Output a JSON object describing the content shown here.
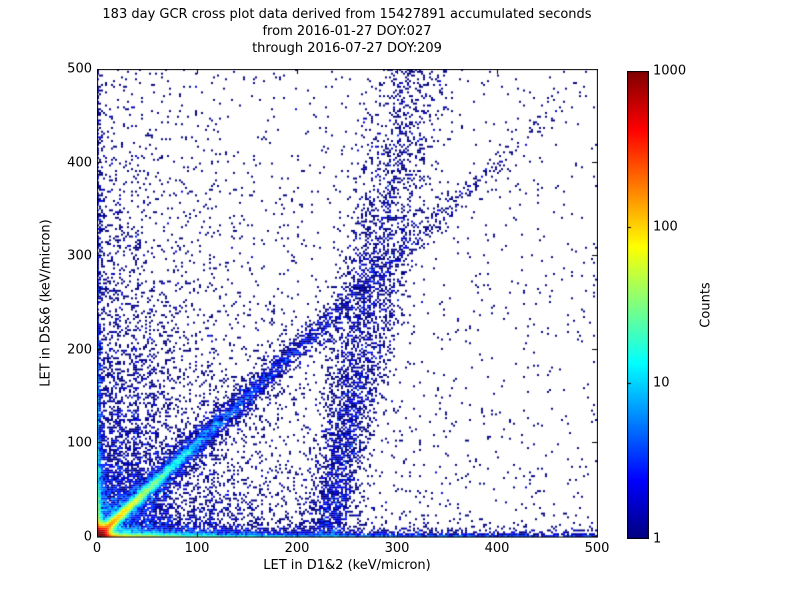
{
  "title": {
    "line1": "183 day GCR cross plot data derived from 15427891 accumulated seconds",
    "line2": "from 2016-01-27 DOY:027",
    "line3": "through 2016-07-27 DOY:209"
  },
  "axes": {
    "xlabel": "LET in D1&2 (keV/micron)",
    "ylabel": "LET in D5&6 (keV/micron)",
    "x_ticks": [
      0,
      100,
      200,
      300,
      400,
      500
    ],
    "y_ticks": [
      0,
      100,
      200,
      300,
      400,
      500
    ],
    "xlim": [
      0,
      500
    ],
    "ylim": [
      0,
      500
    ]
  },
  "colorbar": {
    "label": "Counts",
    "ticks": [
      1,
      10,
      100,
      1000
    ],
    "scale": "log",
    "vmin": 1,
    "vmax": 1000
  },
  "chart_data": {
    "type": "heatmap",
    "title": "183 day GCR cross plot data derived from 15427891 accumulated seconds",
    "subtitle_from": "from 2016-01-27 DOY:027",
    "subtitle_through": "through 2016-07-27 DOY:209",
    "duration_days": 183,
    "accumulated_seconds": 15427891,
    "xlabel": "LET in D1&2 (keV/micron)",
    "ylabel": "LET in D5&6 (keV/micron)",
    "zlabel": "Counts",
    "xlim": [
      0,
      500
    ],
    "ylim": [
      0,
      500
    ],
    "zlim": [
      1,
      1000
    ],
    "zscale": "log10",
    "grid": false,
    "colormap": "jet",
    "colormap_stops": [
      [
        0.0,
        "#00007f"
      ],
      [
        0.125,
        "#0000ff"
      ],
      [
        0.375,
        "#00ffff"
      ],
      [
        0.625,
        "#ffff00"
      ],
      [
        0.875,
        "#ff0000"
      ],
      [
        1.0,
        "#7f0000"
      ]
    ],
    "background": "#ffffff",
    "bin_size_units": 2,
    "seed": 123457,
    "structure_notes": [
      "Hot (red, ~1000 counts) core at the origin fading through orange/yellow/green/cyan",
      "Dense horizontal band along y=0 extending to x=500, red-orange near origin fading to cyan then blue",
      "Dense vertical band hugging x=0 extending to y=500, fading upward",
      "Bright cyan/green 45-degree diagonal streak from origin to ~(80,80), diffuse blue diagonal continuing to ~(320,320)",
      "Faint vertical stripes of counts near x=22, 40, 55, 70, 115",
      "Diffuse plume rising near x=230 at y=0 drifting to x~310 at y~480 (heavy-ion band)",
      "Sparse isolated single-count navy points scattered over the whole plane"
    ],
    "density_model": {
      "radial_core": {
        "amp": 1500,
        "sigma": 5.5
      },
      "x_band_terms": [
        [
          500,
          1.2,
          14
        ],
        [
          60,
          2.2,
          60
        ],
        [
          25,
          1.5,
          150
        ],
        [
          12,
          6,
          80
        ],
        [
          5,
          3,
          600
        ]
      ],
      "y_band_terms": [
        [
          260,
          1.2,
          12
        ],
        [
          40,
          2.2,
          45
        ],
        [
          12,
          1.5,
          130
        ],
        [
          8,
          5,
          60
        ],
        [
          2,
          2,
          450
        ]
      ],
      "diagonal_terms": [
        [
          260,
          2.0,
          22
        ],
        [
          25,
          3.5,
          55
        ],
        [
          4,
          8,
          130
        ]
      ],
      "cloud_terms": [
        [
          6,
          28,
          26
        ],
        [
          1.2,
          75,
          80
        ],
        [
          0.5,
          45,
          260
        ],
        [
          0.18,
          180,
          200
        ]
      ],
      "stripes": [
        {
          "x0": 22,
          "sigma": 1.8,
          "amp": 1.0,
          "yscale": 100
        },
        {
          "x0": 40,
          "sigma": 2.2,
          "amp": 1.2,
          "yscale": 130
        },
        {
          "x0": 55,
          "sigma": 2.2,
          "amp": 0.9,
          "yscale": 130
        },
        {
          "x0": 70,
          "sigma": 2.0,
          "amp": 0.6,
          "yscale": 120
        },
        {
          "x0": 115,
          "sigma": 2.5,
          "amp": 0.45,
          "yscale": 150
        }
      ],
      "fe_band": {
        "x0": 230,
        "drift": 0.17,
        "sigma": 10,
        "widen": 0.025,
        "amp": 1.7,
        "yscale": 260
      },
      "floor": 0.015
    }
  }
}
